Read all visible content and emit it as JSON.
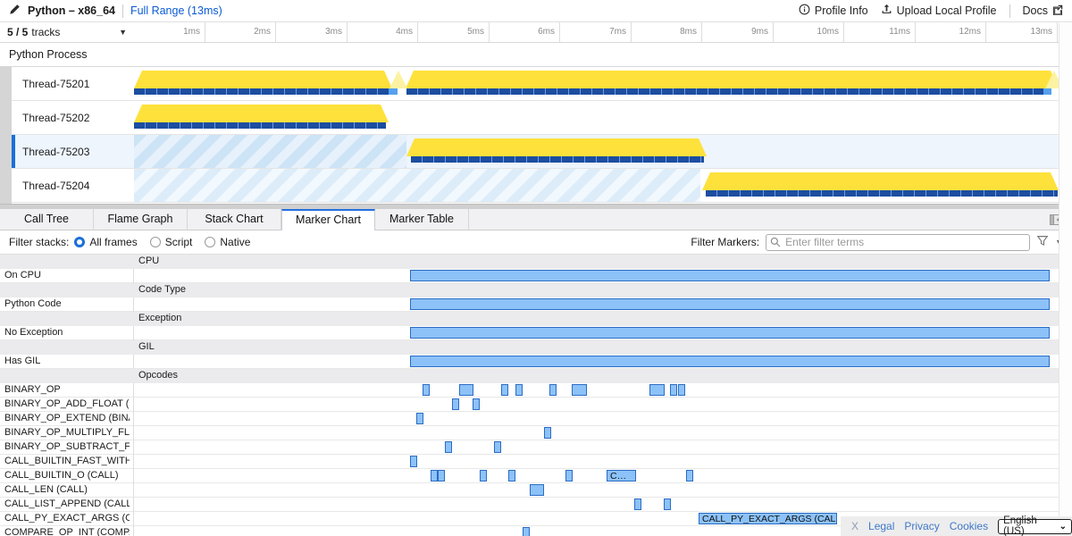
{
  "header": {
    "title": "Python – x86_64",
    "range_label": "Full Range (13ms)",
    "profile_info": "Profile Info",
    "upload_label": "Upload Local Profile",
    "docs_label": "Docs"
  },
  "timeline": {
    "tracks_count": "5 / 5",
    "tracks_word": "tracks",
    "ruler_ticks": [
      "1ms",
      "2ms",
      "3ms",
      "4ms",
      "5ms",
      "6ms",
      "7ms",
      "8ms",
      "9ms",
      "10ms",
      "11ms",
      "12ms",
      "13ms"
    ],
    "process_label": "Python Process",
    "threads": [
      {
        "name": "Thread-75201",
        "selected": false,
        "stripes": [],
        "yellow": [
          [
            0,
            3.63
          ],
          [
            3.82,
            13.02
          ]
        ],
        "peaks": [
          3.72,
          12.95
        ],
        "samples": [
          [
            0,
            3.58
          ],
          [
            3.84,
            12.8
          ]
        ],
        "samples_light": [
          [
            3.58,
            3.71
          ],
          [
            12.8,
            12.92
          ]
        ]
      },
      {
        "name": "Thread-75202",
        "selected": false,
        "stripes": [],
        "yellow": [
          [
            0,
            3.58
          ]
        ],
        "peaks": [],
        "samples": [
          [
            0,
            3.55
          ]
        ],
        "samples_light": []
      },
      {
        "name": "Thread-75203",
        "selected": true,
        "stripes": [
          [
            0,
            3.84
          ]
        ],
        "yellow": [
          [
            3.84,
            8.06
          ]
        ],
        "peaks": [],
        "samples": [
          [
            3.9,
            8.02
          ]
        ],
        "samples_light": []
      },
      {
        "name": "Thread-75204",
        "selected": false,
        "stripes": [
          [
            0,
            7.97
          ]
        ],
        "yellow": [
          [
            8.0,
            13.02
          ]
        ],
        "peaks": [],
        "samples": [
          [
            8.05,
            13.0
          ]
        ],
        "samples_light": []
      }
    ]
  },
  "tabs": {
    "items": [
      "Call Tree",
      "Flame Graph",
      "Stack Chart",
      "Marker Chart",
      "Marker Table"
    ],
    "active": 3
  },
  "filter": {
    "stacks_label": "Filter stacks:",
    "stack_options": [
      "All frames",
      "Script",
      "Native"
    ],
    "selected_option": 0,
    "markers_label": "Filter Markers:",
    "placeholder": "Enter filter terms"
  },
  "chart_data": {
    "type": "bar",
    "variant": "horizontal-interval-marker-chart",
    "title": "Marker Chart",
    "x_axis": {
      "unit": "ms",
      "min": 0,
      "max": 13
    },
    "rows": [
      {
        "kind": "header",
        "label": "CPU"
      },
      {
        "kind": "row",
        "label": "On CPU",
        "markers": [
          {
            "s": 3.89,
            "w": 9.01
          }
        ]
      },
      {
        "kind": "header",
        "label": "Code Type"
      },
      {
        "kind": "row",
        "label": "Python Code",
        "markers": [
          {
            "s": 3.89,
            "w": 9.01
          }
        ]
      },
      {
        "kind": "header",
        "label": "Exception"
      },
      {
        "kind": "row",
        "label": "No Exception",
        "markers": [
          {
            "s": 3.89,
            "w": 9.01
          }
        ]
      },
      {
        "kind": "header",
        "label": "GIL"
      },
      {
        "kind": "row",
        "label": "Has GIL",
        "markers": [
          {
            "s": 3.89,
            "w": 9.01
          }
        ]
      },
      {
        "kind": "header",
        "label": "Opcodes"
      },
      {
        "kind": "row",
        "label": "BINARY_OP",
        "markers": [
          {
            "s": 4.06,
            "w": 0.1
          },
          {
            "s": 4.58,
            "w": 0.2
          },
          {
            "s": 5.17,
            "w": 0.1
          },
          {
            "s": 5.37,
            "w": 0.1
          },
          {
            "s": 5.85,
            "w": 0.1
          },
          {
            "s": 6.16,
            "w": 0.21
          },
          {
            "s": 7.26,
            "w": 0.21
          },
          {
            "s": 7.55,
            "w": 0.1
          },
          {
            "s": 7.66,
            "w": 0.1
          }
        ]
      },
      {
        "kind": "row",
        "label": "BINARY_OP_ADD_FLOAT (B…",
        "markers": [
          {
            "s": 4.48,
            "w": 0.1
          },
          {
            "s": 4.77,
            "w": 0.1
          }
        ]
      },
      {
        "kind": "row",
        "label": "BINARY_OP_EXTEND (BINA…",
        "markers": [
          {
            "s": 3.97,
            "w": 0.1
          }
        ]
      },
      {
        "kind": "row",
        "label": "BINARY_OP_MULTIPLY_FL…",
        "markers": [
          {
            "s": 5.77,
            "w": 0.1
          }
        ]
      },
      {
        "kind": "row",
        "label": "BINARY_OP_SUBTRACT_FL…",
        "markers": [
          {
            "s": 4.38,
            "w": 0.1
          },
          {
            "s": 5.07,
            "w": 0.1
          }
        ]
      },
      {
        "kind": "row",
        "label": "CALL_BUILTIN_FAST_WITH…",
        "markers": [
          {
            "s": 3.89,
            "w": 0.1
          }
        ]
      },
      {
        "kind": "row",
        "label": "CALL_BUILTIN_O (CALL)",
        "markers": [
          {
            "s": 4.18,
            "w": 0.1
          },
          {
            "s": 4.28,
            "w": 0.1
          },
          {
            "s": 4.87,
            "w": 0.1
          },
          {
            "s": 5.27,
            "w": 0.1
          },
          {
            "s": 6.07,
            "w": 0.1
          },
          {
            "s": 6.65,
            "w": 0.42,
            "label": "C…"
          },
          {
            "s": 7.77,
            "w": 0.1
          }
        ]
      },
      {
        "kind": "row",
        "label": "CALL_LEN (CALL)",
        "markers": [
          {
            "s": 5.57,
            "w": 0.2
          }
        ]
      },
      {
        "kind": "row",
        "label": "CALL_LIST_APPEND (CALL)",
        "markers": [
          {
            "s": 7.04,
            "w": 0.1
          },
          {
            "s": 7.46,
            "w": 0.1
          }
        ]
      },
      {
        "kind": "row",
        "label": "CALL_PY_EXACT_ARGS (C…",
        "markers": [
          {
            "s": 7.95,
            "w": 1.95,
            "label": "CALL_PY_EXACT_ARGS (CALL)"
          }
        ]
      },
      {
        "kind": "row",
        "label": "COMPARE_OP_INT (COMPA…",
        "markers": [
          {
            "s": 5.47,
            "w": 0.1
          }
        ]
      }
    ]
  },
  "footer": {
    "close": "X",
    "links": [
      "Legal",
      "Privacy",
      "Cookies"
    ],
    "language": "English (US)"
  },
  "colors": {
    "accent_blue": "#1a6fdb",
    "link_blue": "#0a5bd5",
    "track_yellow": "#ffe13b",
    "track_pale_yellow": "#fcf2a2",
    "sample_dark_blue": "#1c4da0",
    "sample_light_blue": "#55a0ef",
    "marker_fill": "#8cc2f8",
    "marker_border": "#2b6cc4",
    "selected_row_bg": "#eef5fd",
    "header_row_bg": "#ebebed"
  }
}
